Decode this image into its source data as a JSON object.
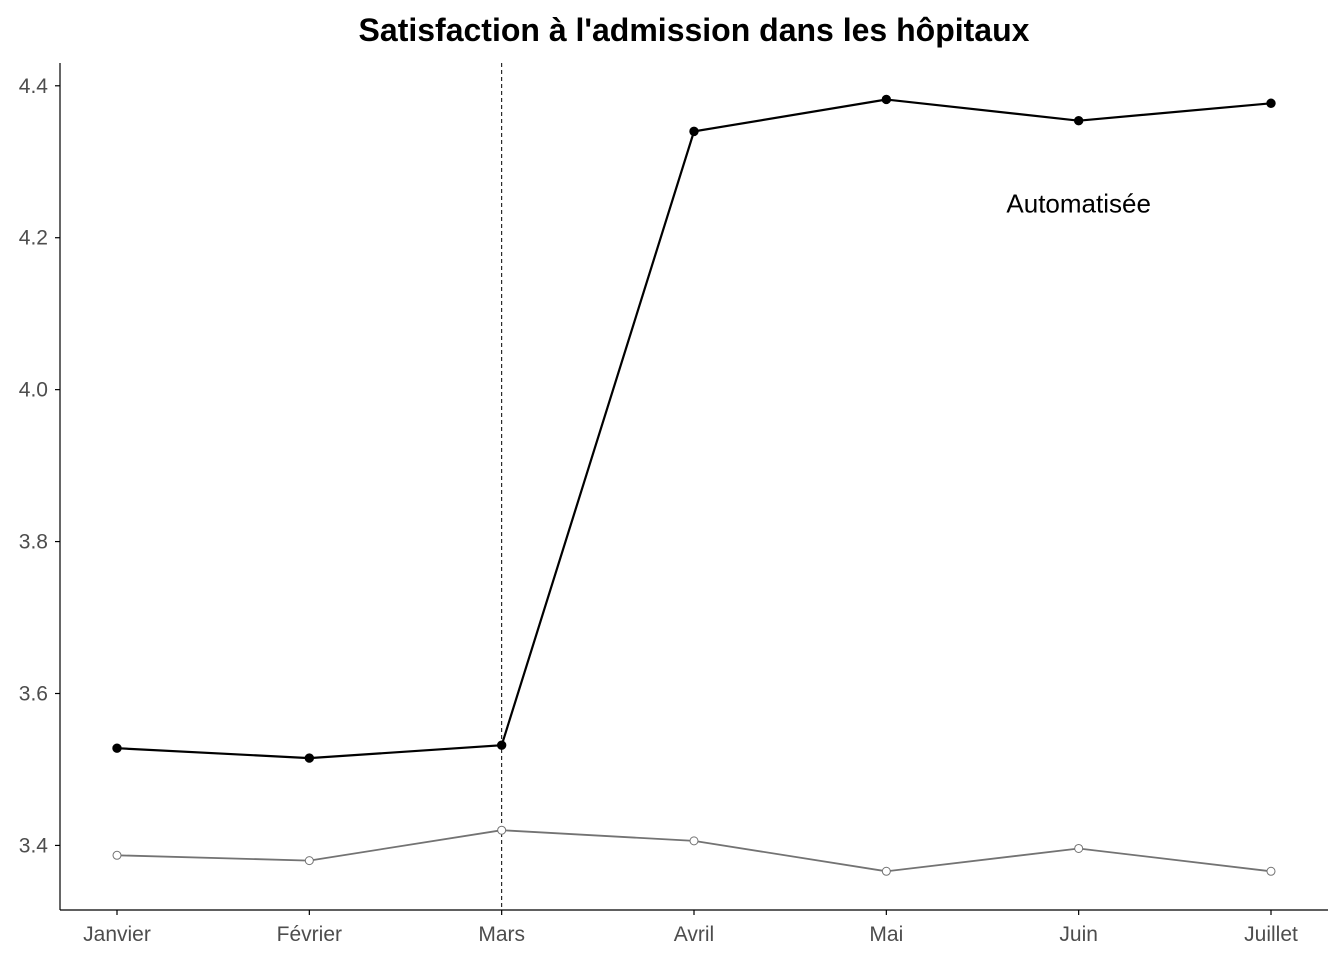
{
  "chart_data": {
    "type": "line",
    "title": "Satisfaction à l'admission dans les hôpitaux",
    "xlabel": "",
    "ylabel": "",
    "categories": [
      "Janvier",
      "Février",
      "Mars",
      "Avril",
      "Mai",
      "Juin",
      "Juillet"
    ],
    "ylim": [
      3.315,
      4.43
    ],
    "yticks": [
      "3.4",
      "3.6",
      "3.8",
      "4.0",
      "4.2",
      "4.4"
    ],
    "grid": false,
    "vline_category": "Mars",
    "series": [
      {
        "values": [
          3.528,
          3.515,
          3.532,
          4.34,
          4.382,
          4.354,
          4.377
        ],
        "color": "#000000",
        "marker": "filled-circle"
      },
      {
        "values": [
          3.387,
          3.38,
          3.42,
          3.406,
          3.366,
          3.396,
          3.366
        ],
        "color": "#737373",
        "marker": "open-circle"
      }
    ],
    "annotations": [
      {
        "text": "Automatisée",
        "category": "Juin",
        "value": 4.245
      }
    ]
  }
}
